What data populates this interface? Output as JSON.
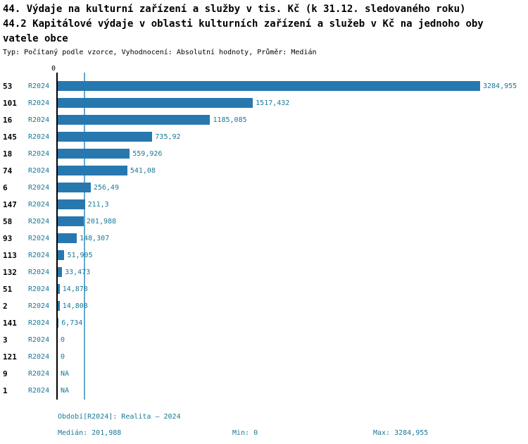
{
  "header": {
    "title_line1": "44. Výdaje na kulturní zařízení a služby v tis. Kč (k 31.12. sledovaného roku)",
    "title_line2": "44.2 Kapitálové výdaje v oblasti kulturních zařízení a služeb v Kč na jednoho oby",
    "title_line3": "vatele obce",
    "subtitle": "Typ: Počítaný podle vzorce, Vyhodnocení: Absolutní hodnoty, Průměr: Medián"
  },
  "chart_data": {
    "type": "bar",
    "orientation": "horizontal",
    "zero_tick_label": "0",
    "series_label": "R2024",
    "categories": [
      "53",
      "101",
      "16",
      "145",
      "18",
      "74",
      "6",
      "147",
      "58",
      "93",
      "113",
      "132",
      "51",
      "2",
      "141",
      "3",
      "121",
      "9",
      "1"
    ],
    "values": [
      3284.955,
      1517.432,
      1185.085,
      735.92,
      559.926,
      541.08,
      256.49,
      211.3,
      201.988,
      148.307,
      51.905,
      33.473,
      14.878,
      14.808,
      6.734,
      0,
      0,
      null,
      null
    ],
    "value_labels": [
      "3284,955",
      "1517,432",
      "1185,085",
      "735,92",
      "559,926",
      "541,08",
      "256,49",
      "211,3",
      "201,988",
      "148,307",
      "51,905",
      "33,473",
      "14,878",
      "14,808",
      "6,734",
      "0",
      "0",
      "NA",
      "NA"
    ],
    "xlim": [
      0,
      3284.955
    ],
    "median": 201.988,
    "bar_color": "#2878b0",
    "text_color": "#1a7898",
    "median_line_color": "#69a8cc",
    "legend_position": "bottom",
    "grid": false
  },
  "footer": {
    "period": "Období[R2024]: Realita – 2024",
    "median": "Medián: 201,988",
    "min": "Min: 0",
    "max": "Max: 3284,955"
  }
}
